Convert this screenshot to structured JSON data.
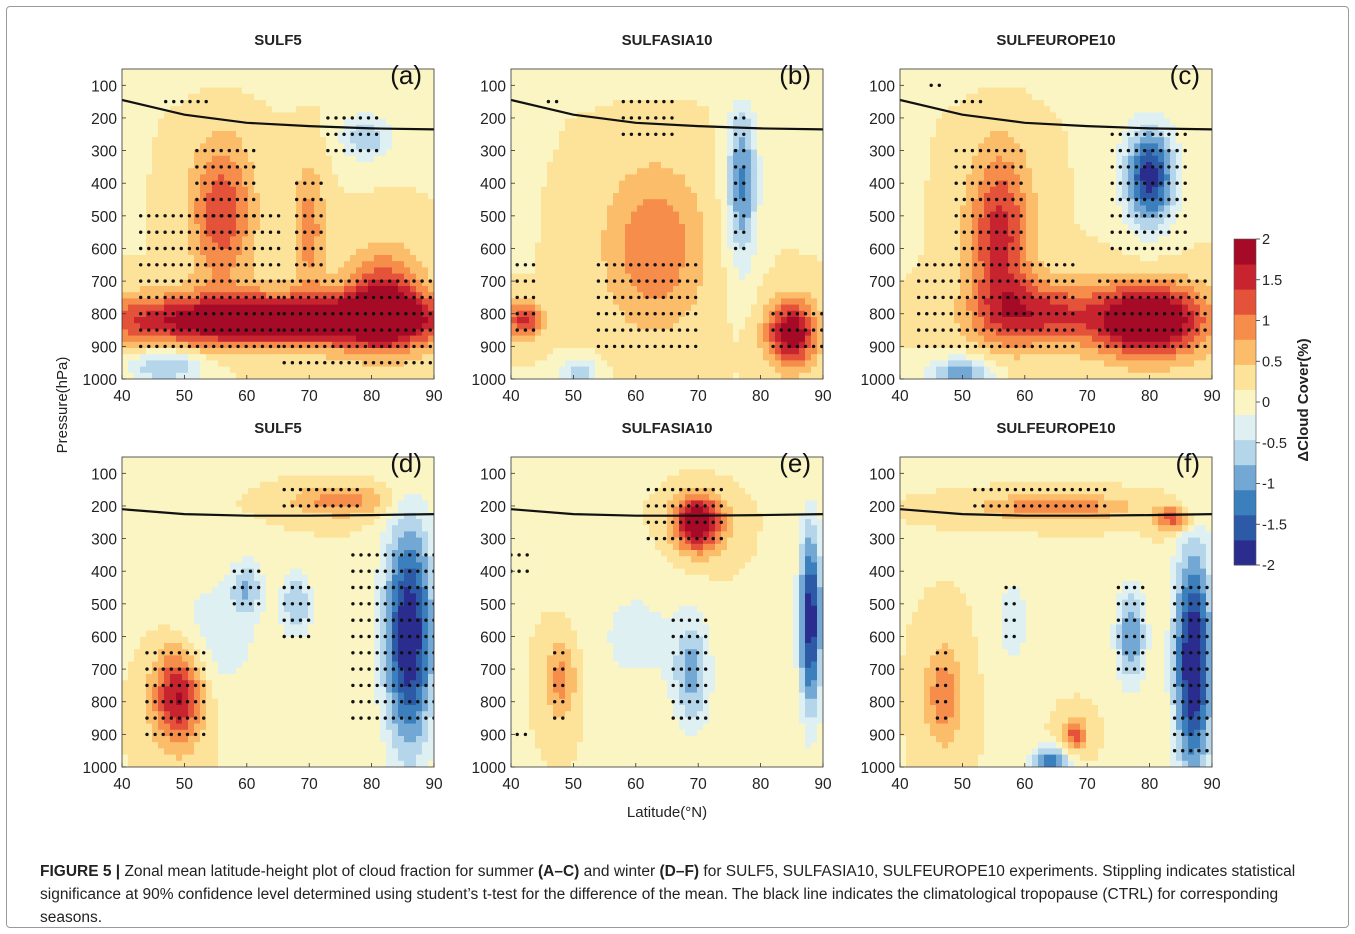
{
  "figure": {
    "ylabel": "Pressure(hPa)",
    "xlabel": "Latitude(°N)",
    "colorbar_label": "ΔCloud Cover(%)"
  },
  "caption": {
    "figure_label": "FIGURE 5 |",
    "text_1": " Zonal mean latitude-height plot of cloud fraction for summer ",
    "bold_1": "(A–C)",
    "text_2": " and winter ",
    "bold_2": "(D–F)",
    "text_3": " for SULF5, SULFASIA10, SULFEUROPE10 experiments. Stippling indicates statistical significance at 90% confidence level determined using student’s t-test for the difference of the mean. The black line indicates the climatological tropopause (CTRL) for corresponding seasons."
  },
  "chart_data": [
    {
      "type": "heatmap",
      "panel": "(a)",
      "title": "SULF5",
      "season": "summer",
      "xlim": [
        40,
        90
      ],
      "ylim": [
        1000,
        50
      ],
      "x_ticks": [
        40,
        50,
        60,
        70,
        80,
        90
      ],
      "y_ticks": [
        100,
        200,
        300,
        400,
        500,
        600,
        700,
        800,
        900,
        1000
      ],
      "tropopause": {
        "x": [
          40,
          50,
          60,
          70,
          80,
          90
        ],
        "y": [
          145,
          190,
          215,
          225,
          232,
          235
        ]
      },
      "blobs": [
        {
          "lat": 56,
          "p": 490,
          "v": 1.2,
          "dl": 5,
          "dp": 220
        },
        {
          "lat": 70,
          "p": 540,
          "v": 0.8,
          "dl": 2.5,
          "dp": 200
        },
        {
          "lat": 65,
          "p": 820,
          "v": 2.2,
          "dl": 30,
          "dp": 80
        },
        {
          "lat": 82,
          "p": 760,
          "v": 1.4,
          "dl": 6,
          "dp": 150
        },
        {
          "lat": 79,
          "p": 260,
          "v": -0.9,
          "dl": 4,
          "dp": 70
        },
        {
          "lat": 47,
          "p": 960,
          "v": -1.0,
          "dl": 6,
          "dp": 50
        }
      ],
      "stipple": [
        {
          "lat": [
            47,
            54
          ],
          "p": [
            150,
            170
          ]
        },
        {
          "lat": [
            73,
            82
          ],
          "p": [
            200,
            340
          ]
        },
        {
          "lat": [
            43,
            66
          ],
          "p": [
            500,
            900
          ]
        },
        {
          "lat": [
            52,
            62
          ],
          "p": [
            300,
            500
          ]
        },
        {
          "lat": [
            68,
            72
          ],
          "p": [
            400,
            650
          ]
        },
        {
          "lat": [
            66,
            90
          ],
          "p": [
            700,
            980
          ]
        }
      ]
    },
    {
      "type": "heatmap",
      "panel": "(b)",
      "title": "SULFASIA10",
      "season": "summer",
      "xlim": [
        40,
        90
      ],
      "ylim": [
        1000,
        50
      ],
      "x_ticks": [
        40,
        50,
        60,
        70,
        80,
        90
      ],
      "y_ticks": [
        100,
        200,
        300,
        400,
        500,
        600,
        700,
        800,
        900,
        1000
      ],
      "tropopause": {
        "x": [
          40,
          50,
          60,
          70,
          80,
          90
        ],
        "y": [
          145,
          190,
          215,
          225,
          232,
          235
        ]
      },
      "blobs": [
        {
          "lat": 63,
          "p": 600,
          "v": 0.9,
          "dl": 8,
          "dp": 250
        },
        {
          "lat": 42,
          "p": 820,
          "v": 1.3,
          "dl": 3,
          "dp": 60
        },
        {
          "lat": 77,
          "p": 400,
          "v": -1.3,
          "dl": 2.5,
          "dp": 250
        },
        {
          "lat": 85,
          "p": 860,
          "v": 1.9,
          "dl": 4,
          "dp": 100
        },
        {
          "lat": 51,
          "p": 980,
          "v": -0.9,
          "dl": 3,
          "dp": 40
        }
      ],
      "stipple": [
        {
          "lat": [
            46,
            48
          ],
          "p": [
            150,
            170
          ]
        },
        {
          "lat": [
            58,
            67
          ],
          "p": [
            150,
            250
          ]
        },
        {
          "lat": [
            76,
            78
          ],
          "p": [
            200,
            600
          ]
        },
        {
          "lat": [
            41,
            44
          ],
          "p": [
            650,
            860
          ]
        },
        {
          "lat": [
            54,
            70
          ],
          "p": [
            650,
            940
          ]
        },
        {
          "lat": [
            82,
            90
          ],
          "p": [
            800,
            940
          ]
        }
      ]
    },
    {
      "type": "heatmap",
      "panel": "(c)",
      "title": "SULFEUROPE10",
      "season": "summer",
      "xlim": [
        40,
        90
      ],
      "ylim": [
        1000,
        50
      ],
      "x_ticks": [
        40,
        50,
        60,
        70,
        80,
        90
      ],
      "y_ticks": [
        100,
        200,
        300,
        400,
        500,
        600,
        700,
        800,
        900,
        1000
      ],
      "tropopause": {
        "x": [
          40,
          50,
          60,
          70,
          80,
          90
        ],
        "y": [
          145,
          190,
          215,
          225,
          232,
          235
        ]
      },
      "blobs": [
        {
          "lat": 56,
          "p": 560,
          "v": 1.4,
          "dl": 5,
          "dp": 260
        },
        {
          "lat": 80,
          "p": 380,
          "v": -2.0,
          "dl": 4,
          "dp": 150
        },
        {
          "lat": 80,
          "p": 820,
          "v": 2.3,
          "dl": 9,
          "dp": 110
        },
        {
          "lat": 62,
          "p": 800,
          "v": 1.3,
          "dl": 10,
          "dp": 100
        },
        {
          "lat": 50,
          "p": 980,
          "v": -1.2,
          "dl": 5,
          "dp": 45
        }
      ],
      "stipple": [
        {
          "lat": [
            45,
            47
          ],
          "p": [
            90,
            110
          ]
        },
        {
          "lat": [
            49,
            53
          ],
          "p": [
            150,
            170
          ]
        },
        {
          "lat": [
            74,
            86
          ],
          "p": [
            250,
            600
          ]
        },
        {
          "lat": [
            49,
            60
          ],
          "p": [
            300,
            600
          ]
        },
        {
          "lat": [
            43,
            68
          ],
          "p": [
            650,
            900
          ]
        },
        {
          "lat": [
            72,
            90
          ],
          "p": [
            700,
            940
          ]
        }
      ]
    },
    {
      "type": "heatmap",
      "panel": "(d)",
      "title": "SULF5",
      "season": "winter",
      "xlim": [
        40,
        90
      ],
      "ylim": [
        1000,
        50
      ],
      "x_ticks": [
        40,
        50,
        60,
        70,
        80,
        90
      ],
      "y_ticks": [
        100,
        200,
        300,
        400,
        500,
        600,
        700,
        800,
        900,
        1000
      ],
      "tropopause": {
        "x": [
          40,
          50,
          60,
          70,
          80,
          90
        ],
        "y": [
          210,
          225,
          230,
          230,
          228,
          225
        ]
      },
      "blobs": [
        {
          "lat": 49,
          "p": 780,
          "v": 1.7,
          "dl": 4,
          "dp": 150
        },
        {
          "lat": 75,
          "p": 180,
          "v": 0.9,
          "dl": 8,
          "dp": 50
        },
        {
          "lat": 86,
          "p": 600,
          "v": -2.2,
          "dl": 4,
          "dp": 350
        },
        {
          "lat": 68,
          "p": 500,
          "v": -0.9,
          "dl": 2.5,
          "dp": 100
        },
        {
          "lat": 60,
          "p": 450,
          "v": -0.8,
          "dl": 2.5,
          "dp": 80
        },
        {
          "lat": 55,
          "p": 600,
          "v": -0.5,
          "dl": 8,
          "dp": 200
        }
      ],
      "stipple": [
        {
          "lat": [
            66,
            78
          ],
          "p": [
            140,
            200
          ]
        },
        {
          "lat": [
            58,
            62
          ],
          "p": [
            400,
            500
          ]
        },
        {
          "lat": [
            66,
            70
          ],
          "p": [
            450,
            600
          ]
        },
        {
          "lat": [
            77,
            90
          ],
          "p": [
            350,
            870
          ]
        },
        {
          "lat": [
            44,
            54
          ],
          "p": [
            650,
            940
          ]
        }
      ]
    },
    {
      "type": "heatmap",
      "panel": "(e)",
      "title": "SULFASIA10",
      "season": "winter",
      "xlim": [
        40,
        90
      ],
      "ylim": [
        1000,
        50
      ],
      "x_ticks": [
        40,
        50,
        60,
        70,
        80,
        90
      ],
      "y_ticks": [
        100,
        200,
        300,
        400,
        500,
        600,
        700,
        800,
        900,
        1000
      ],
      "tropopause": {
        "x": [
          40,
          50,
          60,
          70,
          80,
          90
        ],
        "y": [
          210,
          225,
          230,
          230,
          228,
          225
        ]
      },
      "blobs": [
        {
          "lat": 70,
          "p": 250,
          "v": 2.0,
          "dl": 4,
          "dp": 90
        },
        {
          "lat": 88,
          "p": 550,
          "v": -2.1,
          "dl": 1.8,
          "dp": 280
        },
        {
          "lat": 69,
          "p": 720,
          "v": -1.0,
          "dl": 3,
          "dp": 170
        },
        {
          "lat": 48,
          "p": 730,
          "v": 0.8,
          "dl": 2.5,
          "dp": 120
        },
        {
          "lat": 60,
          "p": 600,
          "v": -0.4,
          "dl": 8,
          "dp": 200
        }
      ],
      "stipple": [
        {
          "lat": [
            62,
            74
          ],
          "p": [
            150,
            340
          ]
        },
        {
          "lat": [
            40,
            43
          ],
          "p": [
            350,
            420
          ]
        },
        {
          "lat": [
            47,
            49
          ],
          "p": [
            650,
            860
          ]
        },
        {
          "lat": [
            66,
            72
          ],
          "p": [
            550,
            850
          ]
        },
        {
          "lat": [
            41,
            43
          ],
          "p": [
            900,
            940
          ]
        }
      ]
    },
    {
      "type": "heatmap",
      "panel": "(f)",
      "title": "SULFEUROPE10",
      "season": "winter",
      "xlim": [
        40,
        90
      ],
      "ylim": [
        1000,
        50
      ],
      "x_ticks": [
        40,
        50,
        60,
        70,
        80,
        90
      ],
      "y_ticks": [
        100,
        200,
        300,
        400,
        500,
        600,
        700,
        800,
        900,
        1000
      ],
      "tropopause": {
        "x": [
          40,
          50,
          60,
          70,
          80,
          90
        ],
        "y": [
          210,
          225,
          230,
          230,
          228,
          225
        ]
      },
      "blobs": [
        {
          "lat": 87,
          "p": 680,
          "v": -2.3,
          "dl": 3,
          "dp": 350
        },
        {
          "lat": 77,
          "p": 600,
          "v": -1.2,
          "dl": 2.5,
          "dp": 150
        },
        {
          "lat": 65,
          "p": 200,
          "v": 0.9,
          "dl": 12,
          "dp": 40
        },
        {
          "lat": 84,
          "p": 240,
          "v": 1.2,
          "dl": 3,
          "dp": 40
        },
        {
          "lat": 47,
          "p": 780,
          "v": 0.9,
          "dl": 3,
          "dp": 150
        },
        {
          "lat": 68,
          "p": 900,
          "v": 1.1,
          "dl": 2,
          "dp": 50
        },
        {
          "lat": 64,
          "p": 980,
          "v": -1.5,
          "dl": 3,
          "dp": 40
        },
        {
          "lat": 58,
          "p": 550,
          "v": -0.5,
          "dl": 3,
          "dp": 150
        }
      ],
      "stipple": [
        {
          "lat": [
            52,
            73
          ],
          "p": [
            140,
            220
          ]
        },
        {
          "lat": [
            57,
            59
          ],
          "p": [
            450,
            600
          ]
        },
        {
          "lat": [
            75,
            79
          ],
          "p": [
            450,
            700
          ]
        },
        {
          "lat": [
            84,
            90
          ],
          "p": [
            450,
            950
          ]
        },
        {
          "lat": [
            46,
            48
          ],
          "p": [
            650,
            860
          ]
        }
      ]
    },
    {
      "type": "colorbar",
      "min": -2,
      "max": 2,
      "ticks": [
        "-2",
        "-1.5",
        "-1",
        "-0.5",
        "0",
        "0.5",
        "1",
        "1.5",
        "2"
      ],
      "colors": [
        "#2a2c8e",
        "#2d5aa6",
        "#3b7fbd",
        "#74a8d4",
        "#b5d6ea",
        "#dff0f3",
        "#fbf5c4",
        "#fde39a",
        "#fcbd6b",
        "#f68d4b",
        "#e5523a",
        "#c82430",
        "#a50b26"
      ]
    }
  ]
}
